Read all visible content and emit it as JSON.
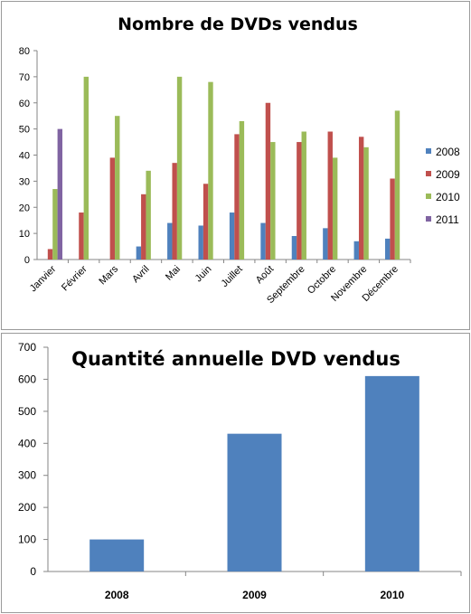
{
  "chart_data": [
    {
      "type": "bar",
      "title": "Nombre de DVDs vendus",
      "categories": [
        "Janvier",
        "Février",
        "Mars",
        "Avril",
        "Mai",
        "Juin",
        "Juillet",
        "Août",
        "Septembre",
        "Octobre",
        "Novembre",
        "Décembre"
      ],
      "ylim": [
        0,
        80
      ],
      "yticks": [
        0,
        10,
        20,
        30,
        40,
        50,
        60,
        70,
        80
      ],
      "grid": false,
      "legend": "right",
      "series": [
        {
          "name": "2008",
          "color": "#4F81BD",
          "values": [
            null,
            null,
            null,
            5,
            14,
            13,
            18,
            14,
            9,
            12,
            7,
            8
          ]
        },
        {
          "name": "2009",
          "color": "#C0504D",
          "values": [
            4,
            18,
            39,
            25,
            37,
            29,
            48,
            60,
            45,
            49,
            47,
            31
          ]
        },
        {
          "name": "2010",
          "color": "#9BBB59",
          "values": [
            27,
            70,
            55,
            34,
            70,
            68,
            53,
            45,
            49,
            39,
            43,
            57
          ]
        },
        {
          "name": "2011",
          "color": "#8064A2",
          "values": [
            50,
            null,
            null,
            null,
            null,
            null,
            null,
            null,
            null,
            null,
            null,
            null
          ]
        }
      ]
    },
    {
      "type": "bar",
      "title": "Quantité annuelle DVD vendus",
      "categories": [
        "2008",
        "2009",
        "2010"
      ],
      "values": [
        100,
        430,
        610
      ],
      "ylim": [
        0,
        700
      ],
      "yticks": [
        0,
        100,
        200,
        300,
        400,
        500,
        600,
        700
      ],
      "grid": false,
      "color": "#4F81BD"
    }
  ]
}
